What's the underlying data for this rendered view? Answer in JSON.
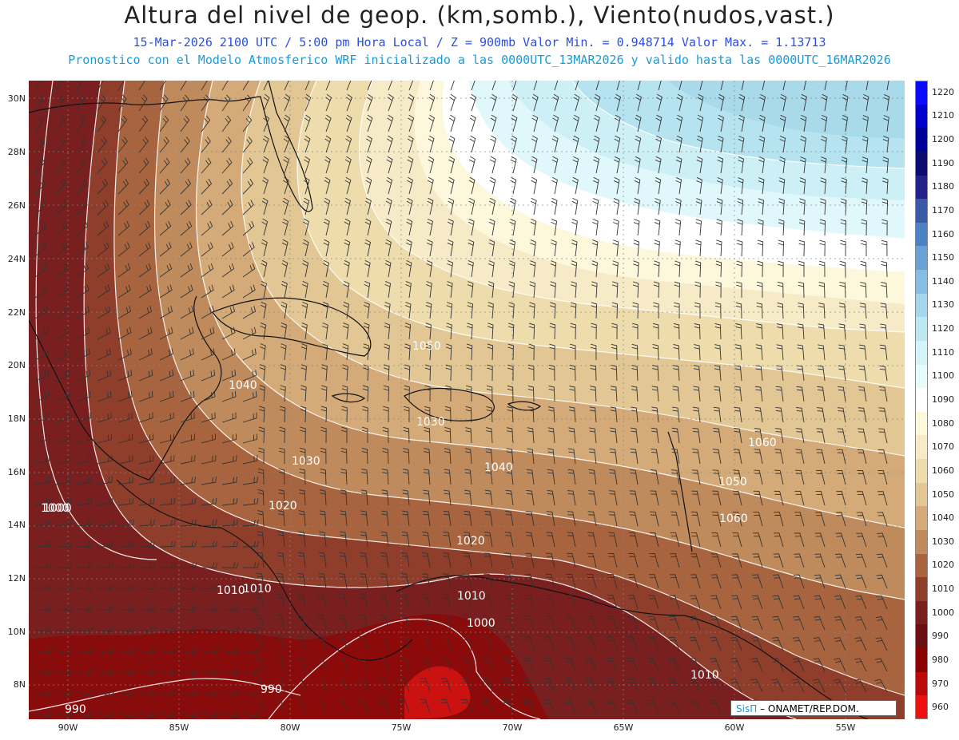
{
  "header": {
    "title": "Altura del nivel de geop. (km,somb.), Viento(nudos,vast.)",
    "line1": "15-Mar-2026  2100 UTC / 5:00 pm Hora Local / Z = 900mb   Valor Min. = 0.948714  Valor Max. = 1.13713",
    "line2": "Pronostico con el Modelo Atmosferico WRF inicializado a las 0000UTC_13MAR2026 y valido hasta las  0000UTC_16MAR2026"
  },
  "axes": {
    "lat_labels": [
      "30N",
      "28N",
      "26N",
      "24N",
      "22N",
      "20N",
      "18N",
      "16N",
      "14N",
      "12N",
      "10N",
      "8N"
    ],
    "lon_labels": [
      "90W",
      "85W",
      "80W",
      "75W",
      "70W",
      "65W",
      "60W",
      "55W"
    ]
  },
  "colorbar": {
    "labels": [
      "1220",
      "1210",
      "1200",
      "1190",
      "1180",
      "1170",
      "1160",
      "1150",
      "1140",
      "1130",
      "1120",
      "1110",
      "1100",
      "1090",
      "1080",
      "1070",
      "1060",
      "1050",
      "1040",
      "1030",
      "1020",
      "1010",
      "1000",
      "990",
      "980",
      "970",
      "960"
    ],
    "colors": [
      "#0a0aff",
      "#0000cc",
      "#000099",
      "#0c0c70",
      "#22228a",
      "#3a5aa8",
      "#4a82c4",
      "#6aa2d6",
      "#86bde3",
      "#a6d6ec",
      "#bde8f2",
      "#d4f4f8",
      "#e6fbfc",
      "#ffffff",
      "#fdf7dc",
      "#f6ebc6",
      "#eedcac",
      "#e2c693",
      "#d4ab78",
      "#c08b5c",
      "#a8643f",
      "#8f3e2c",
      "#7a1f1f",
      "#6b0f12",
      "#8b0000",
      "#bb0a0a",
      "#ee1111"
    ]
  },
  "contour_labels": [
    "1000",
    "1010",
    "1020",
    "1030",
    "1040",
    "1050",
    "1060",
    "1000",
    "1010",
    "1020",
    "1030",
    "1040",
    "1050",
    "1060",
    "990",
    "990",
    "1000",
    "1010",
    "1010"
  ],
  "credit": {
    "sis": "SisΠ",
    "org": "– ONAMET/REP.DOM."
  }
}
